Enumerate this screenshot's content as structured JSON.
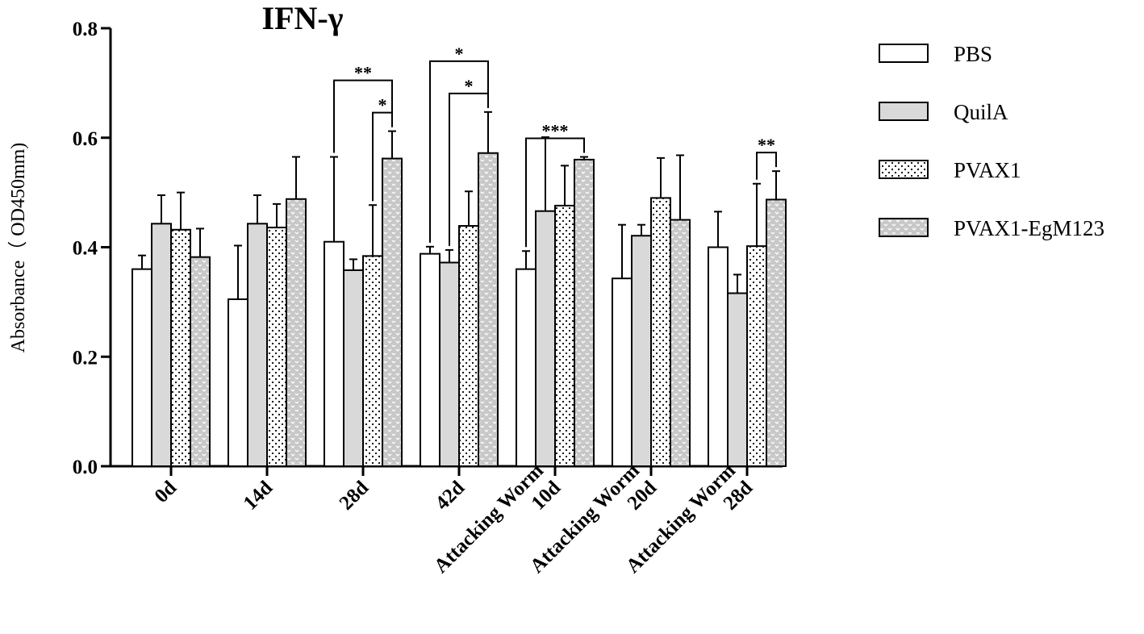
{
  "chart_data": {
    "type": "bar",
    "title": "IFN-γ",
    "xlabel": "",
    "ylabel": "Absorbance（ OD450mm)",
    "ylim": [
      0,
      0.8
    ],
    "yticks": [
      "0.0",
      "0.2",
      "0.4",
      "0.6",
      "0.8"
    ],
    "categories": [
      [
        "0d"
      ],
      [
        "14d"
      ],
      [
        "28d"
      ],
      [
        "42d"
      ],
      [
        "Attacking Worm",
        "10d"
      ],
      [
        "Attacking Worm",
        "20d"
      ],
      [
        "Attacking Worm",
        "28d"
      ]
    ],
    "series": [
      {
        "name": "PBS",
        "color": "#ffffff",
        "pattern": "none",
        "values": [
          0.36,
          0.305,
          0.41,
          0.388,
          0.36,
          0.343,
          0.4
        ],
        "errors": [
          0.025,
          0.098,
          0.155,
          0.013,
          0.033,
          0.098,
          0.065
        ]
      },
      {
        "name": "QuilA",
        "color": "#d9d9d9",
        "pattern": "none",
        "values": [
          0.443,
          0.443,
          0.358,
          0.372,
          0.466,
          0.421,
          0.316
        ],
        "errors": [
          0.052,
          0.052,
          0.02,
          0.023,
          0.135,
          0.02,
          0.034
        ]
      },
      {
        "name": "PVAX1",
        "color": "#ffffff",
        "pattern": "dots",
        "values": [
          0.432,
          0.436,
          0.384,
          0.439,
          0.476,
          0.49,
          0.402
        ],
        "errors": [
          0.068,
          0.043,
          0.093,
          0.063,
          0.073,
          0.073,
          0.114
        ]
      },
      {
        "name": "PVAX1-EgM123",
        "color": "#c8c8c8",
        "pattern": "waves",
        "values": [
          0.382,
          0.488,
          0.562,
          0.572,
          0.56,
          0.45,
          0.487
        ],
        "errors": [
          0.052,
          0.077,
          0.05,
          0.075,
          0.005,
          0.118,
          0.052
        ]
      }
    ],
    "significance": [
      {
        "label": "**",
        "category": 2,
        "from_series": 0,
        "to_series": 3
      },
      {
        "label": "*",
        "category": 2,
        "from_series": 2,
        "to_series": 3
      },
      {
        "label": "*",
        "category": 3,
        "from_series": 0,
        "to_series": 3
      },
      {
        "label": "*",
        "category": 3,
        "from_series": 1,
        "to_series": 3
      },
      {
        "label": "***",
        "category": 4,
        "from_series": 0,
        "to_series": 3
      },
      {
        "label": "**",
        "category": 6,
        "from_series": 2,
        "to_series": 3
      }
    ],
    "legend_position": "right",
    "grid": false
  }
}
